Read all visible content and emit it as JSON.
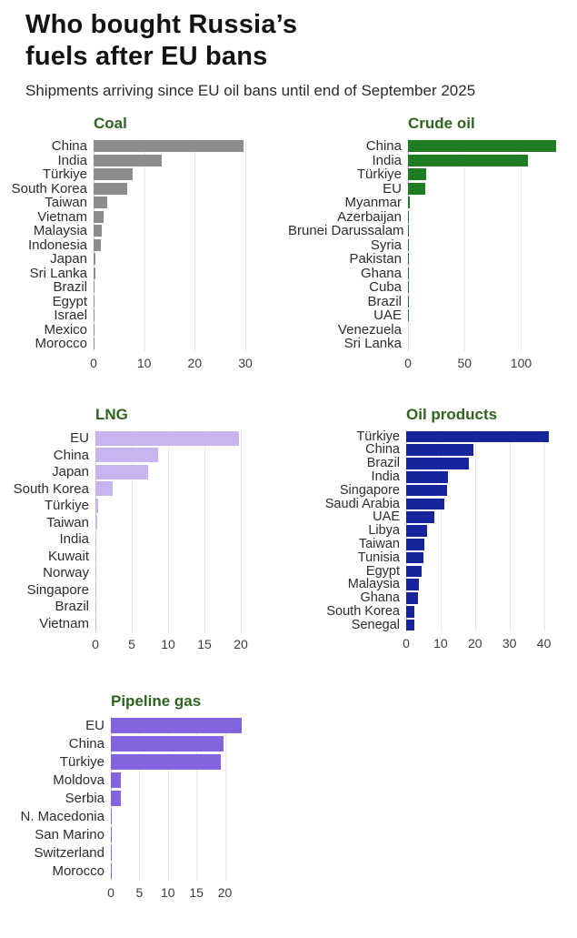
{
  "page": {
    "title_line1": "Who bought Russia’s",
    "title_line2": "fuels after EU bans",
    "subtitle": "Shipments arriving since EU oil bans until end of September 2025",
    "chart_title_color": "#2f6420",
    "gridline_color": "#eae5f1"
  },
  "chart_data": [
    {
      "type": "bar",
      "orientation": "horizontal",
      "title": "Coal",
      "color": "#8c8c8c",
      "legend": "none",
      "grid": "vertical",
      "xlim": [
        0,
        37
      ],
      "xticks": [
        0,
        10,
        20,
        30
      ],
      "categories": [
        "China",
        "India",
        "Türkiye",
        "South Korea",
        "Taiwan",
        "Vietnam",
        "Malaysia",
        "Indonesia",
        "Japan",
        "Sri Lanka",
        "Brazil",
        "Egypt",
        "Israel",
        "Mexico",
        "Morocco"
      ],
      "values": [
        29.6,
        13.4,
        7.7,
        6.6,
        2.7,
        1.9,
        1.7,
        1.5,
        0.4,
        0.4,
        0.15,
        0.1,
        0.06,
        0.05,
        0.03
      ]
    },
    {
      "type": "bar",
      "orientation": "horizontal",
      "title": "Crude oil",
      "color": "#1e7d23",
      "legend": "none",
      "grid": "vertical",
      "xlim": [
        0,
        143
      ],
      "xticks": [
        0,
        50,
        100
      ],
      "categories": [
        "China",
        "India",
        "Türkiye",
        "EU",
        "Myanmar",
        "Azerbaijan",
        "Brunei Darussalam",
        "Syria",
        "Pakistan",
        "Ghana",
        "Cuba",
        "Brazil",
        "UAE",
        "Venezuela",
        "Sri Lanka"
      ],
      "values": [
        131,
        106,
        16,
        15,
        1.6,
        0.4,
        0.25,
        0.2,
        0.15,
        0.12,
        0.1,
        0.1,
        0.08,
        0.05,
        0.04
      ]
    },
    {
      "type": "bar",
      "orientation": "horizontal",
      "title": "LNG",
      "color": "#c8b4ef",
      "legend": "none",
      "grid": "vertical",
      "xlim": [
        0,
        25.5
      ],
      "xticks": [
        0,
        5,
        10,
        15,
        20
      ],
      "categories": [
        "EU",
        "China",
        "Japan",
        "South Korea",
        "Türkiye",
        "Taiwan",
        "India",
        "Kuwait",
        "Norway",
        "Singapore",
        "Brazil",
        "Vietnam"
      ],
      "values": [
        19.8,
        8.6,
        7.3,
        2.4,
        0.4,
        0.3,
        0.1,
        0.06,
        0.05,
        0.04,
        0.03,
        0.02
      ]
    },
    {
      "type": "bar",
      "orientation": "horizontal",
      "title": "Oil products",
      "color": "#17249b",
      "legend": "none",
      "grid": "vertical",
      "xlim": [
        0,
        47.5
      ],
      "xticks": [
        0,
        10,
        20,
        30,
        40
      ],
      "categories": [
        "Türkiye",
        "China",
        "Brazil",
        "India",
        "Singapore",
        "Saudi Arabia",
        "UAE",
        "Libya",
        "Taiwan",
        "Tunisia",
        "Egypt",
        "Malaysia",
        "Ghana",
        "South Korea",
        "Senegal"
      ],
      "values": [
        41.4,
        19.5,
        18.1,
        12.2,
        12.0,
        11.0,
        8.3,
        6.0,
        5.3,
        4.9,
        4.6,
        3.8,
        3.4,
        2.4,
        2.4
      ]
    },
    {
      "type": "bar",
      "orientation": "horizontal",
      "title": "Pipeline gas",
      "color": "#8465e0",
      "legend": "none",
      "grid": "vertical",
      "xlim": [
        0,
        29.8
      ],
      "xticks": [
        0,
        5,
        10,
        15,
        20
      ],
      "categories": [
        "EU",
        "China",
        "Türkiye",
        "Moldova",
        "Serbia",
        "N. Macedonia",
        "San Marino",
        "Switzerland",
        "Morocco"
      ],
      "values": [
        23.0,
        19.8,
        19.3,
        1.8,
        1.7,
        0.08,
        0.05,
        0.04,
        0.02
      ]
    }
  ]
}
